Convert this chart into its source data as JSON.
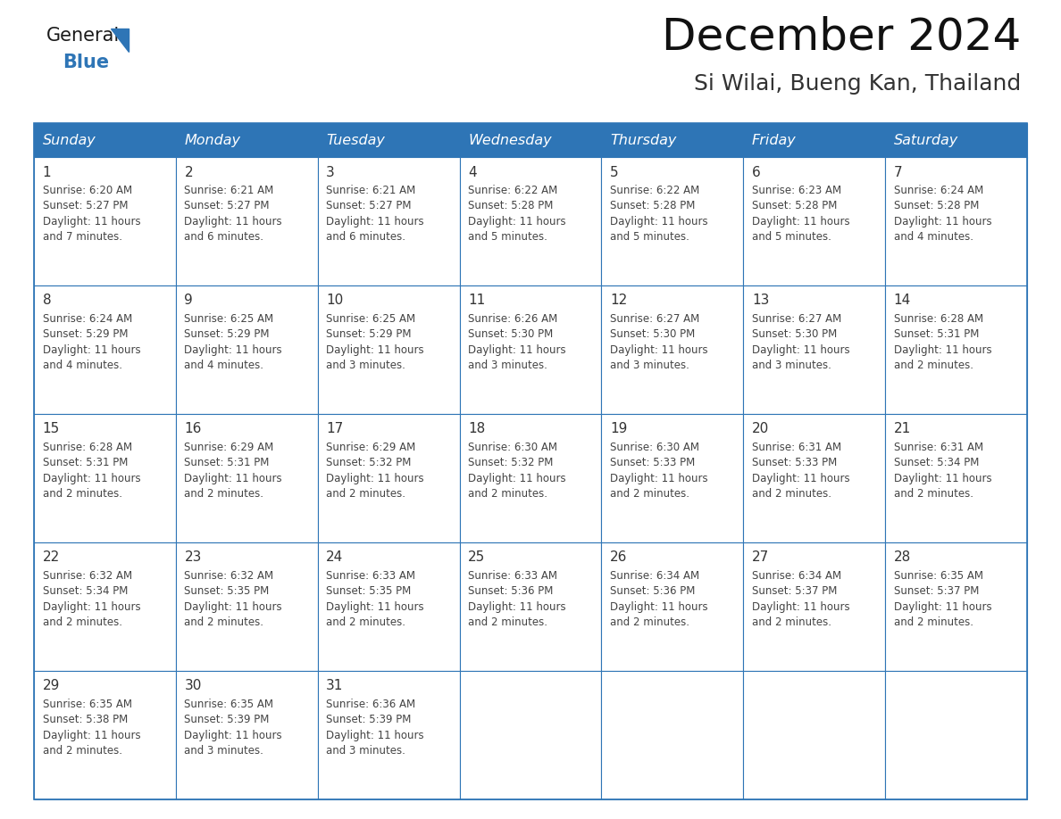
{
  "title": "December 2024",
  "subtitle": "Si Wilai, Bueng Kan, Thailand",
  "header_bg": "#2E75B6",
  "header_text_color": "#FFFFFF",
  "cell_border_color": "#2E75B6",
  "day_number_color": "#333333",
  "cell_text_color": "#444444",
  "background_color": "#FFFFFF",
  "days_of_week": [
    "Sunday",
    "Monday",
    "Tuesday",
    "Wednesday",
    "Thursday",
    "Friday",
    "Saturday"
  ],
  "calendar_data": [
    [
      {
        "day": 1,
        "sunrise": "6:20 AM",
        "sunset": "5:27 PM",
        "daylight": "11 hours and 7 minutes."
      },
      {
        "day": 2,
        "sunrise": "6:21 AM",
        "sunset": "5:27 PM",
        "daylight": "11 hours and 6 minutes."
      },
      {
        "day": 3,
        "sunrise": "6:21 AM",
        "sunset": "5:27 PM",
        "daylight": "11 hours and 6 minutes."
      },
      {
        "day": 4,
        "sunrise": "6:22 AM",
        "sunset": "5:28 PM",
        "daylight": "11 hours and 5 minutes."
      },
      {
        "day": 5,
        "sunrise": "6:22 AM",
        "sunset": "5:28 PM",
        "daylight": "11 hours and 5 minutes."
      },
      {
        "day": 6,
        "sunrise": "6:23 AM",
        "sunset": "5:28 PM",
        "daylight": "11 hours and 5 minutes."
      },
      {
        "day": 7,
        "sunrise": "6:24 AM",
        "sunset": "5:28 PM",
        "daylight": "11 hours and 4 minutes."
      }
    ],
    [
      {
        "day": 8,
        "sunrise": "6:24 AM",
        "sunset": "5:29 PM",
        "daylight": "11 hours and 4 minutes."
      },
      {
        "day": 9,
        "sunrise": "6:25 AM",
        "sunset": "5:29 PM",
        "daylight": "11 hours and 4 minutes."
      },
      {
        "day": 10,
        "sunrise": "6:25 AM",
        "sunset": "5:29 PM",
        "daylight": "11 hours and 3 minutes."
      },
      {
        "day": 11,
        "sunrise": "6:26 AM",
        "sunset": "5:30 PM",
        "daylight": "11 hours and 3 minutes."
      },
      {
        "day": 12,
        "sunrise": "6:27 AM",
        "sunset": "5:30 PM",
        "daylight": "11 hours and 3 minutes."
      },
      {
        "day": 13,
        "sunrise": "6:27 AM",
        "sunset": "5:30 PM",
        "daylight": "11 hours and 3 minutes."
      },
      {
        "day": 14,
        "sunrise": "6:28 AM",
        "sunset": "5:31 PM",
        "daylight": "11 hours and 2 minutes."
      }
    ],
    [
      {
        "day": 15,
        "sunrise": "6:28 AM",
        "sunset": "5:31 PM",
        "daylight": "11 hours and 2 minutes."
      },
      {
        "day": 16,
        "sunrise": "6:29 AM",
        "sunset": "5:31 PM",
        "daylight": "11 hours and 2 minutes."
      },
      {
        "day": 17,
        "sunrise": "6:29 AM",
        "sunset": "5:32 PM",
        "daylight": "11 hours and 2 minutes."
      },
      {
        "day": 18,
        "sunrise": "6:30 AM",
        "sunset": "5:32 PM",
        "daylight": "11 hours and 2 minutes."
      },
      {
        "day": 19,
        "sunrise": "6:30 AM",
        "sunset": "5:33 PM",
        "daylight": "11 hours and 2 minutes."
      },
      {
        "day": 20,
        "sunrise": "6:31 AM",
        "sunset": "5:33 PM",
        "daylight": "11 hours and 2 minutes."
      },
      {
        "day": 21,
        "sunrise": "6:31 AM",
        "sunset": "5:34 PM",
        "daylight": "11 hours and 2 minutes."
      }
    ],
    [
      {
        "day": 22,
        "sunrise": "6:32 AM",
        "sunset": "5:34 PM",
        "daylight": "11 hours and 2 minutes."
      },
      {
        "day": 23,
        "sunrise": "6:32 AM",
        "sunset": "5:35 PM",
        "daylight": "11 hours and 2 minutes."
      },
      {
        "day": 24,
        "sunrise": "6:33 AM",
        "sunset": "5:35 PM",
        "daylight": "11 hours and 2 minutes."
      },
      {
        "day": 25,
        "sunrise": "6:33 AM",
        "sunset": "5:36 PM",
        "daylight": "11 hours and 2 minutes."
      },
      {
        "day": 26,
        "sunrise": "6:34 AM",
        "sunset": "5:36 PM",
        "daylight": "11 hours and 2 minutes."
      },
      {
        "day": 27,
        "sunrise": "6:34 AM",
        "sunset": "5:37 PM",
        "daylight": "11 hours and 2 minutes."
      },
      {
        "day": 28,
        "sunrise": "6:35 AM",
        "sunset": "5:37 PM",
        "daylight": "11 hours and 2 minutes."
      }
    ],
    [
      {
        "day": 29,
        "sunrise": "6:35 AM",
        "sunset": "5:38 PM",
        "daylight": "11 hours and 2 minutes."
      },
      {
        "day": 30,
        "sunrise": "6:35 AM",
        "sunset": "5:39 PM",
        "daylight": "11 hours and 3 minutes."
      },
      {
        "day": 31,
        "sunrise": "6:36 AM",
        "sunset": "5:39 PM",
        "daylight": "11 hours and 3 minutes."
      },
      null,
      null,
      null,
      null
    ]
  ],
  "logo_general_color": "#1a1a1a",
  "logo_blue_color": "#2E75B6",
  "logo_triangle_color": "#2E75B6",
  "title_fontsize": 36,
  "subtitle_fontsize": 18,
  "header_fontsize": 11.5,
  "day_num_fontsize": 11,
  "cell_text_fontsize": 8.5
}
